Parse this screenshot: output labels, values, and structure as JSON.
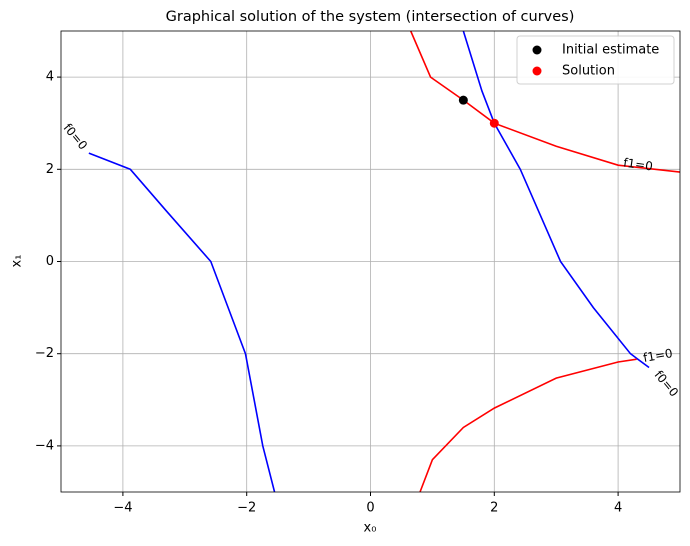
{
  "chart_data": {
    "type": "contour",
    "title": "Graphical solution of the system (intersection of curves)",
    "x_label": "x₀",
    "y_label": "x₁",
    "xlim": [
      -5,
      5
    ],
    "ylim": [
      -5,
      5
    ],
    "xticks": [
      {
        "value": -4,
        "label": "−4"
      },
      {
        "value": -2,
        "label": "−2"
      },
      0,
      2,
      4
    ],
    "yticks": [
      {
        "value": -4,
        "label": "−4"
      },
      {
        "value": -2,
        "label": "−2"
      },
      0,
      2,
      4
    ],
    "grid": true,
    "legend": "upper right",
    "contours": [
      {
        "label": "f0=0",
        "color": "#0000ff",
        "x": [
          -4.55,
          -3.88,
          -3.3,
          -2.58,
          -2.3,
          -2.02,
          -1.74,
          -1.55
        ],
        "y": [
          2.35,
          2,
          1.1,
          0,
          -1,
          -2,
          -4,
          -5
        ]
      },
      {
        "label": "f0=0",
        "color": "#0000ff",
        "x": [
          1.5,
          1.8,
          2,
          2.42,
          3.07,
          3.6,
          4.2,
          4.5
        ],
        "y": [
          5,
          3.7,
          3,
          2,
          0,
          -1,
          -2,
          -2.3
        ]
      },
      {
        "label": "f1=0",
        "color": "#ff0000",
        "x": [
          0.65,
          0.97,
          1.5,
          2,
          3,
          4,
          5
        ],
        "y": [
          5,
          4,
          3.5,
          3,
          2.5,
          2.09,
          1.94
        ]
      },
      {
        "label": "f1=0",
        "color": "#ff0000",
        "x": [
          0.8,
          1,
          1.5,
          2,
          3,
          4,
          4.3
        ],
        "y": [
          -5,
          -4.3,
          -3.6,
          -3.18,
          -2.53,
          -2.18,
          -2.12
        ]
      }
    ],
    "series": [
      {
        "name": "Initial estimate",
        "color": "#000000",
        "x": [
          1.5
        ],
        "values": [
          3.5
        ]
      },
      {
        "name": "Solution",
        "color": "#ff0000",
        "x": [
          2
        ],
        "values": [
          3
        ]
      }
    ]
  }
}
